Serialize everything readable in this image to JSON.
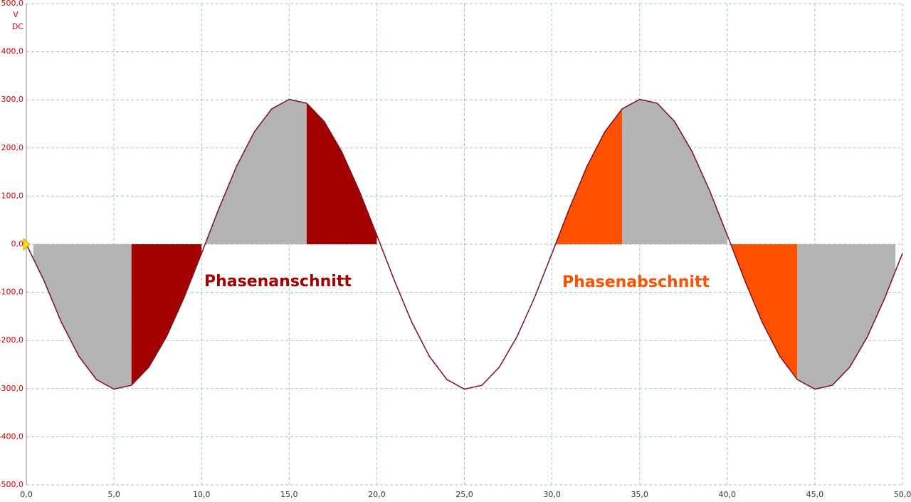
{
  "chart_data": {
    "type": "line",
    "y_unit": "V",
    "coupling": "DC",
    "annotations": [
      {
        "text": "Phasenanschnitt",
        "color": "#a30000"
      },
      {
        "text": "Phasenabschnitt",
        "color": "#ff5000"
      }
    ],
    "x": [
      0,
      1,
      2,
      3,
      4,
      5,
      6,
      7,
      8,
      9,
      10,
      11,
      12,
      13,
      14,
      15,
      16,
      17,
      18,
      19,
      20,
      21,
      22,
      23,
      24,
      25,
      26,
      27,
      28,
      29,
      30,
      31,
      32,
      33,
      34,
      35,
      36,
      37,
      38,
      39,
      40,
      41,
      42,
      43,
      44,
      45,
      46,
      47,
      48,
      49,
      50
    ],
    "series": [
      {
        "color": "#7a1020",
        "values": [
          0,
          -75,
          -162,
          -233,
          -281,
          -301,
          -293,
          -255,
          -192,
          -111,
          -19,
          75,
          162,
          233,
          281,
          301,
          293,
          255,
          192,
          111,
          19,
          -75,
          -162,
          -233,
          -281,
          -301,
          -293,
          -255,
          -192,
          -111,
          -19,
          75,
          162,
          233,
          281,
          301,
          293,
          255,
          192,
          111,
          19,
          -75,
          -162,
          -233,
          -281,
          -301,
          -293,
          -255,
          -192,
          -111,
          -19
        ]
      }
    ],
    "fills": [
      {
        "color": "#b3b3b3",
        "x_range": [
          0.4,
          6
        ]
      },
      {
        "color": "#a30000",
        "x_range": [
          6,
          10
        ]
      },
      {
        "color": "#b3b3b3",
        "x_range": [
          10.2,
          16
        ]
      },
      {
        "color": "#a30000",
        "x_range": [
          16,
          20
        ]
      },
      {
        "color": "#ff5000",
        "x_range": [
          30.2,
          34
        ]
      },
      {
        "color": "#b3b3b3",
        "x_range": [
          34,
          40
        ]
      },
      {
        "color": "#ff5000",
        "x_range": [
          40.2,
          44
        ]
      },
      {
        "color": "#b3b3b3",
        "x_range": [
          44,
          49.6
        ]
      }
    ],
    "xlim": [
      0,
      50
    ],
    "xticks": [
      {
        "value": 0,
        "label": "0,0"
      },
      {
        "value": 5,
        "label": "5,0"
      },
      {
        "value": 10,
        "label": "10,0"
      },
      {
        "value": 15,
        "label": "15,0"
      },
      {
        "value": 20,
        "label": "20,0"
      },
      {
        "value": 25,
        "label": "25,0"
      },
      {
        "value": 30,
        "label": "30,0"
      },
      {
        "value": 35,
        "label": "35,0"
      },
      {
        "value": 40,
        "label": "40,0"
      },
      {
        "value": 45,
        "label": "45,0"
      },
      {
        "value": 50,
        "label": "50,0"
      }
    ],
    "ylim": [
      -500,
      500
    ],
    "yticks": [
      {
        "value": -500,
        "label": "-500,0"
      },
      {
        "value": -400,
        "label": "-400,0"
      },
      {
        "value": -300,
        "label": "-300,0"
      },
      {
        "value": -200,
        "label": "-200,0"
      },
      {
        "value": -100,
        "label": "-100,0"
      },
      {
        "value": 0,
        "label": "0,0"
      },
      {
        "value": 100,
        "label": "100,0"
      },
      {
        "value": 200,
        "label": "200,0"
      },
      {
        "value": 300,
        "label": "300,0"
      },
      {
        "value": 400,
        "label": "400,0"
      },
      {
        "value": 500,
        "label": "500,0"
      }
    ],
    "grid": true
  }
}
